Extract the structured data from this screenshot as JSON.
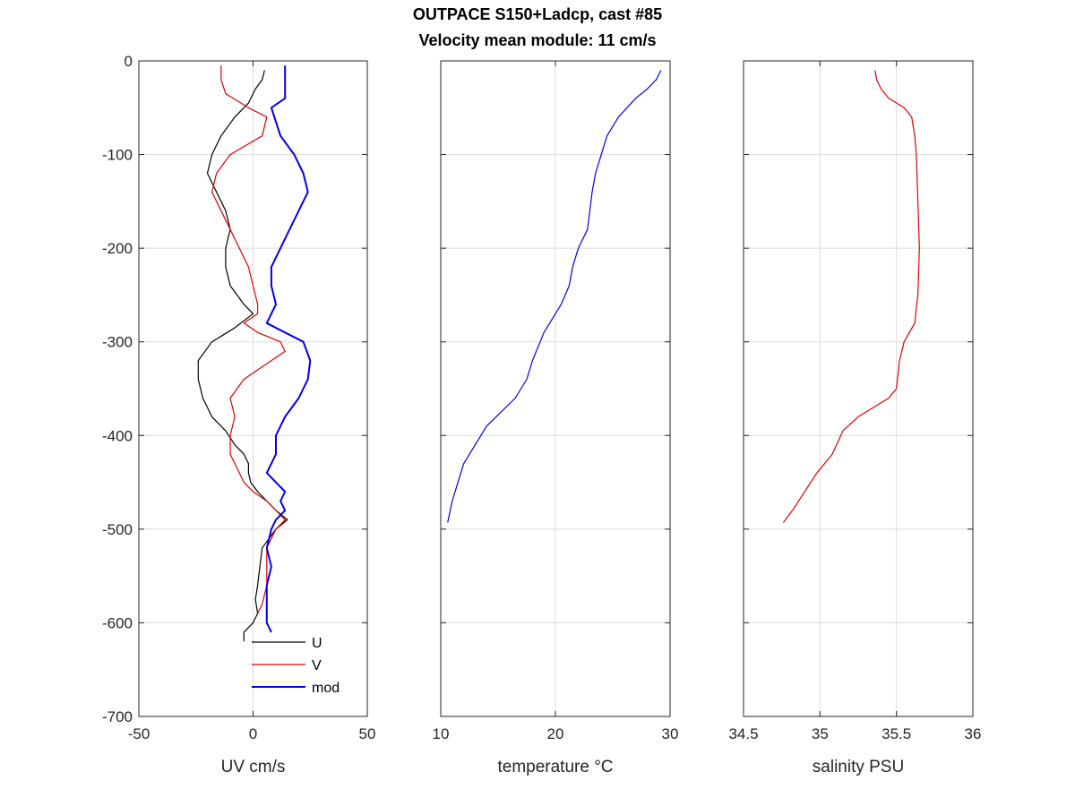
{
  "figure": {
    "title": "OUTPACE S150+Ladcp, cast #85",
    "subtitle": "Velocity mean module:  11 cm/s"
  },
  "chart_data": [
    {
      "type": "line",
      "xlabel": "UV cm/s",
      "ylabel": "",
      "xlim": [
        -50,
        50
      ],
      "ylim": [
        -700,
        0
      ],
      "xticks": [
        -50,
        0,
        50
      ],
      "yticks": [
        0,
        -100,
        -200,
        -300,
        -400,
        -500,
        -600,
        -700
      ],
      "grid": true,
      "legend": "bottom-right",
      "series": [
        {
          "name": "U",
          "color": "#000000",
          "x": [
            5,
            4,
            1,
            -2,
            -8,
            -14,
            -18,
            -20,
            -16,
            -12,
            -10,
            -12,
            -12,
            -10,
            -4,
            0,
            -8,
            -18,
            -24,
            -24,
            -22,
            -18,
            -12,
            -8,
            -4,
            -2,
            -2,
            -1,
            2,
            6,
            10,
            15,
            10,
            4,
            3,
            2,
            1,
            2,
            0,
            -4,
            -4
          ],
          "y": [
            -10,
            -20,
            -30,
            -45,
            -60,
            -80,
            -100,
            -120,
            -140,
            -160,
            -180,
            -200,
            -220,
            -240,
            -260,
            -270,
            -285,
            -300,
            -320,
            -340,
            -360,
            -380,
            -395,
            -410,
            -420,
            -430,
            -440,
            -450,
            -460,
            -470,
            -480,
            -490,
            -500,
            -520,
            -540,
            -560,
            -575,
            -590,
            -600,
            -610,
            -620
          ]
        },
        {
          "name": "V",
          "color": "#e00000",
          "x": [
            -14,
            -14,
            -12,
            -2,
            6,
            4,
            -10,
            -16,
            -18,
            -14,
            -10,
            -6,
            -2,
            0,
            2,
            2,
            -4,
            2,
            12,
            14,
            8,
            -4,
            -10,
            -8,
            -10,
            -10,
            -6,
            -4,
            0,
            6,
            10,
            14,
            10,
            6,
            6,
            6,
            4,
            2
          ],
          "y": [
            -5,
            -20,
            -35,
            -50,
            -60,
            -80,
            -100,
            -120,
            -140,
            -160,
            -180,
            -200,
            -220,
            -240,
            -260,
            -270,
            -280,
            -290,
            -300,
            -310,
            -320,
            -340,
            -360,
            -380,
            -400,
            -420,
            -440,
            -450,
            -460,
            -470,
            -480,
            -490,
            -500,
            -520,
            -540,
            -560,
            -580,
            -590
          ]
        },
        {
          "name": "mod",
          "color": "#0000ee",
          "x": [
            14,
            14,
            14,
            8,
            12,
            18,
            22,
            24,
            20,
            16,
            12,
            8,
            8,
            10,
            8,
            6,
            14,
            22,
            25,
            24,
            20,
            14,
            10,
            10,
            8,
            6,
            10,
            14,
            12,
            14,
            10,
            8,
            6,
            8,
            6,
            6,
            6,
            8
          ],
          "y": [
            -5,
            -20,
            -40,
            -50,
            -80,
            -100,
            -120,
            -140,
            -160,
            -180,
            -200,
            -220,
            -240,
            -260,
            -270,
            -280,
            -290,
            -300,
            -320,
            -340,
            -360,
            -380,
            -400,
            -420,
            -430,
            -440,
            -450,
            -460,
            -470,
            -480,
            -490,
            -500,
            -520,
            -540,
            -560,
            -580,
            -600,
            -610
          ]
        }
      ]
    },
    {
      "type": "line",
      "xlabel": "temperature °C",
      "ylabel": "",
      "xlim": [
        10,
        30
      ],
      "ylim": [
        -700,
        0
      ],
      "xticks": [
        10,
        20,
        30
      ],
      "yticks": [
        0,
        -100,
        -200,
        -300,
        -400,
        -500,
        -600,
        -700
      ],
      "grid": true,
      "series": [
        {
          "name": "",
          "color": "#0000ee",
          "x": [
            29.2,
            28.8,
            28.0,
            27.0,
            25.5,
            24.5,
            24.0,
            23.5,
            23.2,
            23.0,
            22.8,
            22.0,
            21.5,
            21.2,
            20.5,
            19.0,
            18.0,
            17.5,
            16.5,
            14.0,
            12.0,
            11.0,
            10.6
          ],
          "y": [
            -10,
            -20,
            -30,
            -40,
            -60,
            -80,
            -100,
            -120,
            -140,
            -160,
            -180,
            -200,
            -220,
            -240,
            -260,
            -290,
            -320,
            -340,
            -360,
            -390,
            -430,
            -470,
            -493
          ]
        }
      ]
    },
    {
      "type": "line",
      "xlabel": "salinity PSU",
      "ylabel": "",
      "xlim": [
        34.5,
        36
      ],
      "ylim": [
        -700,
        0
      ],
      "xticks": [
        34.5,
        35,
        35.5,
        36
      ],
      "xtick_labels": [
        "34.5",
        "35",
        "35.5",
        "36"
      ],
      "yticks": [
        0,
        -100,
        -200,
        -300,
        -400,
        -500,
        -600,
        -700
      ],
      "grid": true,
      "series": [
        {
          "name": "",
          "color": "#e00000",
          "x": [
            35.36,
            35.37,
            35.4,
            35.45,
            35.55,
            35.6,
            35.62,
            35.63,
            35.64,
            35.65,
            35.64,
            35.62,
            35.55,
            35.52,
            35.5,
            35.45,
            35.25,
            35.15,
            35.08,
            34.98,
            34.9,
            34.82,
            34.76
          ],
          "y": [
            -10,
            -20,
            -30,
            -40,
            -50,
            -60,
            -80,
            -100,
            -150,
            -200,
            -250,
            -280,
            -300,
            -320,
            -350,
            -360,
            -380,
            -395,
            -420,
            -440,
            -460,
            -480,
            -493
          ]
        }
      ]
    }
  ]
}
